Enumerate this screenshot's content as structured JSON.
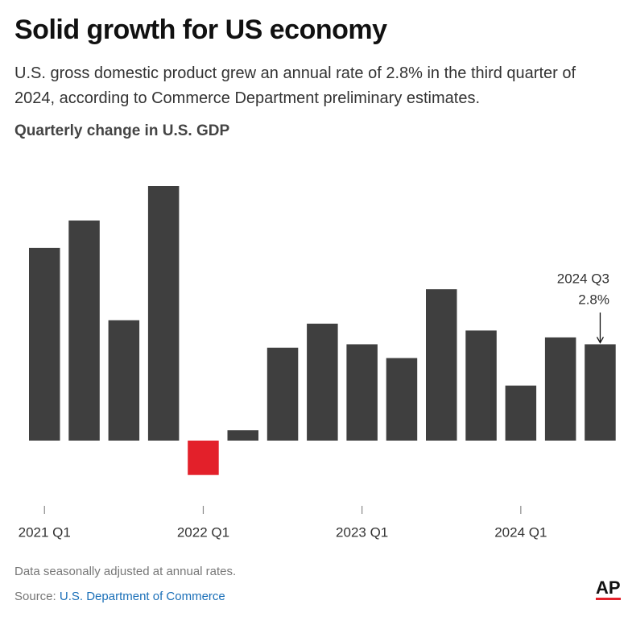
{
  "chart_data": {
    "type": "bar",
    "title": "Solid growth for US economy",
    "subtitle": "U.S. gross domestic product grew an annual rate of 2.8% in the third quarter of 2024, according to Commerce Department preliminary estimates.",
    "y_label": "Quarterly change in U.S. GDP",
    "categories": [
      "2021 Q1",
      null,
      null,
      null,
      "2022 Q1",
      null,
      null,
      null,
      "2023 Q1",
      null,
      null,
      null,
      "2024 Q1",
      null,
      null
    ],
    "values": [
      5.6,
      6.4,
      3.5,
      7.4,
      -1.0,
      0.3,
      2.7,
      3.4,
      2.8,
      2.4,
      4.4,
      3.2,
      1.6,
      3.0,
      2.8
    ],
    "value_labels": [
      null,
      null,
      null,
      null,
      null,
      null,
      null,
      null,
      null,
      null,
      null,
      null,
      null,
      null,
      "2.8%"
    ],
    "annotation": "2024 Q3",
    "color": "#3f3f3f",
    "negative_color": "#e3202a",
    "note": "Data seasonally adjusted at annual rates.",
    "source_label": "Source:",
    "source": "U.S. Department of Commerce",
    "logo": "AP"
  }
}
